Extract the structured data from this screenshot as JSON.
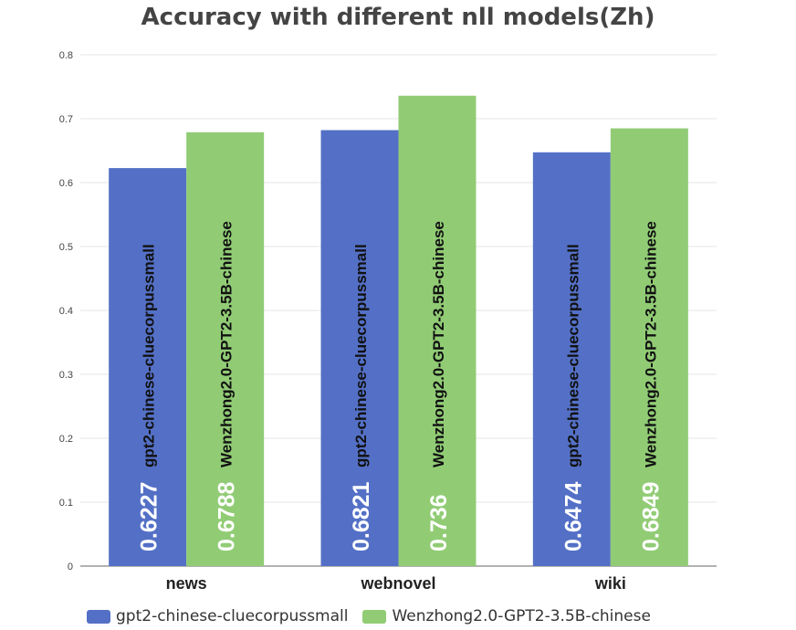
{
  "chart_data": {
    "type": "bar",
    "title": "Accuracy with different nll models(Zh)",
    "xlabel": "",
    "ylabel": "",
    "categories": [
      "news",
      "webnovel",
      "wiki"
    ],
    "series": [
      {
        "name": "gpt2-chinese-cluecorpussmall",
        "values": [
          0.6227,
          0.6821,
          0.6474
        ],
        "labels": [
          "0.6227",
          "0.6821",
          "0.6474"
        ],
        "color": "#5470c6"
      },
      {
        "name": "Wenzhong2.0-GPT2-3.5B-chinese",
        "values": [
          0.6788,
          0.736,
          0.6849
        ],
        "labels": [
          "0.6788",
          "0.736",
          "0.6849"
        ],
        "color": "#91cc75"
      }
    ],
    "ylim": [
      0,
      0.8
    ],
    "yticks": [
      "0",
      "0.1",
      "0.2",
      "0.3",
      "0.4",
      "0.5",
      "0.6",
      "0.7",
      "0.8"
    ],
    "grid": true,
    "legend_position": "bottom-left"
  }
}
